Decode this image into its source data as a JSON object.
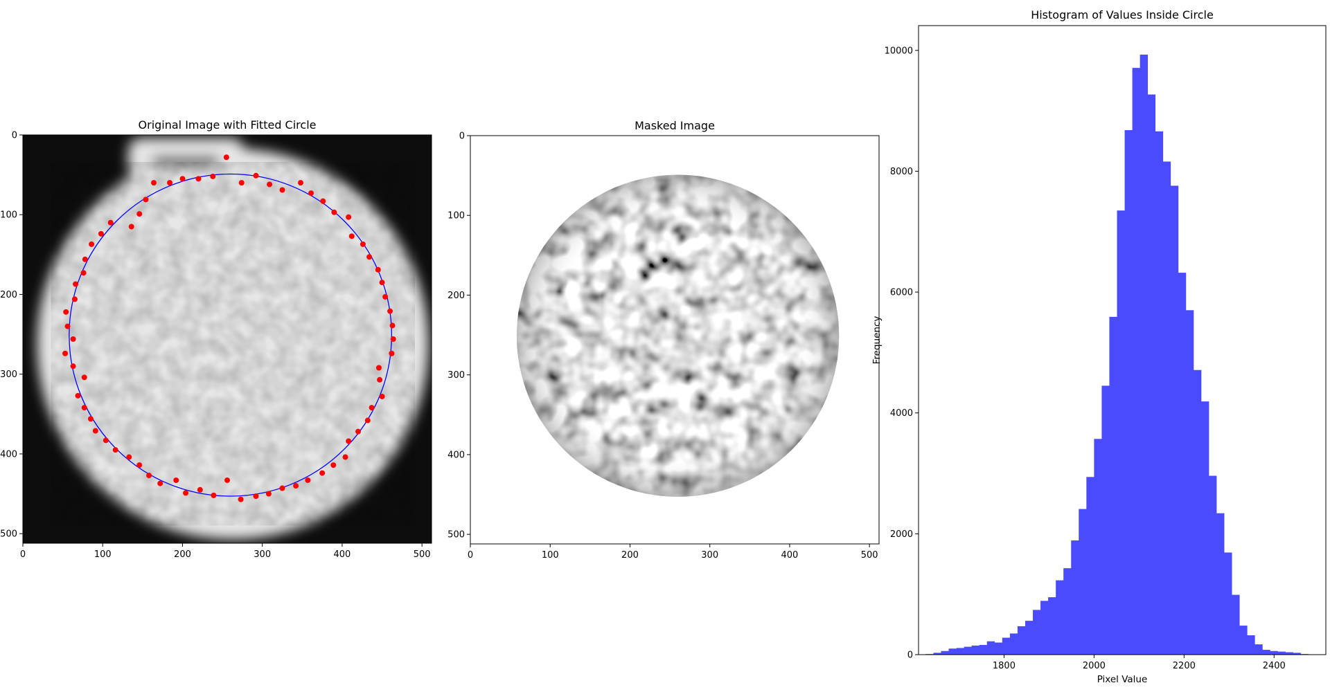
{
  "chart_data": [
    {
      "type": "image",
      "title": "Original Image with Fitted Circle",
      "xlim": [
        0,
        512
      ],
      "ylim": [
        512,
        0
      ],
      "x_ticks": [
        0,
        100,
        200,
        300,
        400,
        500
      ],
      "y_ticks": [
        0,
        100,
        200,
        300,
        400,
        500
      ],
      "fitted_circle": {
        "cx": 260,
        "cy": 251,
        "r": 202,
        "color": "#0000ff"
      },
      "edge_points_color": "#ff0000",
      "edge_points": [
        [
          255,
          28
        ],
        [
          292,
          51
        ],
        [
          274,
          60
        ],
        [
          309,
          62
        ],
        [
          325,
          69
        ],
        [
          348,
          60
        ],
        [
          361,
          73
        ],
        [
          376,
          83
        ],
        [
          390,
          97
        ],
        [
          408,
          103
        ],
        [
          412,
          127
        ],
        [
          426,
          137
        ],
        [
          434,
          153
        ],
        [
          445,
          169
        ],
        [
          450,
          185
        ],
        [
          454,
          203
        ],
        [
          460,
          221
        ],
        [
          463,
          239
        ],
        [
          464,
          256
        ],
        [
          462,
          274
        ],
        [
          446,
          292
        ],
        [
          447,
          307
        ],
        [
          450,
          328
        ],
        [
          437,
          342
        ],
        [
          432,
          358
        ],
        [
          420,
          372
        ],
        [
          408,
          384
        ],
        [
          404,
          404
        ],
        [
          389,
          414
        ],
        [
          375,
          424
        ],
        [
          357,
          433
        ],
        [
          342,
          440
        ],
        [
          325,
          443
        ],
        [
          308,
          450
        ],
        [
          292,
          453
        ],
        [
          273,
          457
        ],
        [
          256,
          433
        ],
        [
          239,
          452
        ],
        [
          222,
          445
        ],
        [
          204,
          449
        ],
        [
          192,
          433
        ],
        [
          172,
          437
        ],
        [
          158,
          427
        ],
        [
          146,
          414
        ],
        [
          133,
          404
        ],
        [
          116,
          395
        ],
        [
          104,
          383
        ],
        [
          91,
          371
        ],
        [
          85,
          356
        ],
        [
          77,
          342
        ],
        [
          69,
          327
        ],
        [
          77,
          304
        ],
        [
          63,
          290
        ],
        [
          53,
          274
        ],
        [
          63,
          256
        ],
        [
          56,
          240
        ],
        [
          54,
          222
        ],
        [
          65,
          206
        ],
        [
          66,
          187
        ],
        [
          76,
          173
        ],
        [
          78,
          156
        ],
        [
          86,
          137
        ],
        [
          98,
          124
        ],
        [
          110,
          110
        ],
        [
          136,
          115
        ],
        [
          146,
          99
        ],
        [
          154,
          81
        ],
        [
          164,
          60
        ],
        [
          184,
          60
        ],
        [
          200,
          55
        ],
        [
          220,
          55
        ],
        [
          238,
          52
        ]
      ]
    },
    {
      "type": "image",
      "title": "Masked Image",
      "xlim": [
        0,
        512
      ],
      "ylim": [
        512,
        0
      ],
      "x_ticks": [
        0,
        100,
        200,
        300,
        400,
        500
      ],
      "y_ticks": [
        0,
        100,
        200,
        300,
        400,
        500
      ]
    },
    {
      "type": "histogram",
      "title": "Histogram of Values Inside Circle",
      "xlabel": "Pixel Value",
      "ylabel": "Frequency",
      "bar_color": "#4a4aff",
      "xlim": [
        1610,
        2515
      ],
      "ylim": [
        0,
        10410
      ],
      "x_ticks": [
        1800,
        2000,
        2200,
        2400
      ],
      "y_ticks": [
        0,
        2000,
        4000,
        6000,
        8000,
        10000
      ],
      "bin_width": 17,
      "bin_start": 1626,
      "counts": [
        10,
        30,
        60,
        100,
        110,
        130,
        150,
        160,
        220,
        200,
        280,
        350,
        470,
        560,
        740,
        890,
        950,
        1230,
        1430,
        1890,
        2410,
        2940,
        3570,
        4450,
        5590,
        7350,
        8680,
        9710,
        9930,
        9270,
        8660,
        8160,
        7760,
        6320,
        5700,
        4710,
        4190,
        2960,
        2340,
        1690,
        990,
        480,
        320,
        170,
        80,
        60,
        50,
        40,
        30,
        10
      ]
    }
  ]
}
